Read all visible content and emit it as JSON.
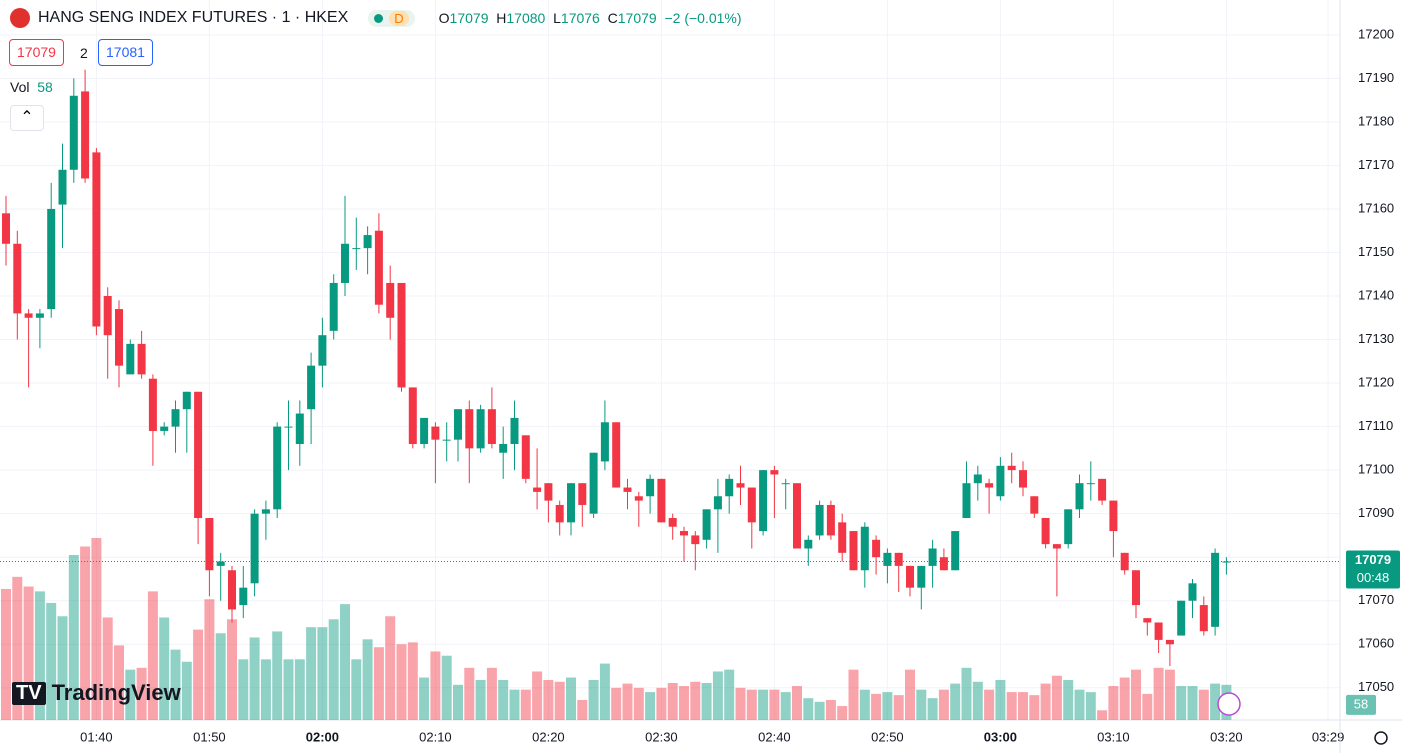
{
  "header": {
    "title": "HANG SENG INDEX FUTURES · 1 · HKEX",
    "status": "D",
    "ohlc_labels": [
      "O",
      "H",
      "L",
      "C"
    ],
    "change": "−2 (−0.01%)"
  },
  "trade": {
    "bid": "17079",
    "spread": "2",
    "ask": "17081"
  },
  "volume_label": "Vol",
  "brand": "TradingView",
  "countdown": "00:48",
  "chart_data": {
    "type": "candlestick",
    "x": [
      "01:32",
      "01:33",
      "01:34",
      "01:35",
      "01:36",
      "01:37",
      "01:38",
      "01:39",
      "01:40",
      "01:41",
      "01:42",
      "01:43",
      "01:44",
      "01:45",
      "01:46",
      "01:47",
      "01:48",
      "01:49",
      "01:50",
      "01:51",
      "01:52",
      "01:53",
      "01:54",
      "01:55",
      "01:56",
      "01:57",
      "01:58",
      "01:59",
      "02:00",
      "02:01",
      "02:02",
      "02:03",
      "02:04",
      "02:05",
      "02:06",
      "02:07",
      "02:08",
      "02:09",
      "02:10",
      "02:11",
      "02:12",
      "02:13",
      "02:14",
      "02:15",
      "02:16",
      "02:17",
      "02:18",
      "02:19",
      "02:20",
      "02:21",
      "02:22",
      "02:23",
      "02:24",
      "02:25",
      "02:26",
      "02:27",
      "02:28",
      "02:29",
      "02:30",
      "02:31",
      "02:32",
      "02:33",
      "02:34",
      "02:35",
      "02:36",
      "02:37",
      "02:38",
      "02:39",
      "02:40",
      "02:41",
      "02:42",
      "02:43",
      "02:44",
      "02:45",
      "02:46",
      "02:47",
      "02:48",
      "02:49",
      "02:50",
      "02:51",
      "02:52",
      "02:53",
      "02:54",
      "02:55",
      "02:56",
      "02:57",
      "02:58",
      "02:59",
      "03:00",
      "03:01",
      "03:02",
      "03:03",
      "03:04",
      "03:05",
      "03:06",
      "03:07",
      "03:08",
      "03:09",
      "03:10",
      "03:11",
      "03:12",
      "03:13",
      "03:14",
      "03:15",
      "03:16",
      "03:17",
      "03:18",
      "03:19",
      "03:20"
    ],
    "open": [
      17159,
      17152,
      17136,
      17135,
      17137,
      17161,
      17169,
      17187,
      17173,
      17140,
      17137,
      17122,
      17129,
      17121,
      17109,
      17110,
      17114,
      17118,
      17089,
      17078,
      17077,
      17069,
      17074,
      17090,
      17091,
      17110,
      17106,
      17114,
      17124,
      17132,
      17143,
      17151,
      17151,
      17155,
      17143,
      17143,
      17119,
      17106,
      17110,
      17107,
      17107,
      17114,
      17105,
      17114,
      17104,
      17106,
      17108,
      17096,
      17097,
      17092,
      17088,
      17097,
      17090,
      17102,
      17111,
      17096,
      17094,
      17094,
      17098,
      17089,
      17086,
      17085,
      17084,
      17091,
      17094,
      17097,
      17096,
      17086,
      17100,
      17097,
      17097,
      17082,
      17085,
      17092,
      17088,
      17086,
      17077,
      17084,
      17078,
      17081,
      17078,
      17073,
      17078,
      17080,
      17077,
      17089,
      17097,
      17097,
      17094,
      17101,
      17100,
      17094,
      17089,
      17083,
      17083,
      17091,
      17097,
      17098,
      17093,
      17081,
      17077,
      17066,
      17065,
      17061,
      17062,
      17070,
      17069,
      17064,
      17079
    ],
    "high": [
      17163,
      17155,
      17137,
      17137,
      17166,
      17175,
      17190,
      17192,
      17174,
      17142,
      17139,
      17130,
      17132,
      17122,
      17111,
      17116,
      17118,
      17118,
      17089,
      17081,
      17078,
      17078,
      17091,
      17093,
      17111,
      17116,
      17116,
      17127,
      17135,
      17145,
      17163,
      17158,
      17156,
      17159,
      17147,
      17143,
      17119,
      17112,
      17111,
      17111,
      17114,
      17116,
      17115,
      17119,
      17110,
      17116,
      17108,
      17105,
      17097,
      17093,
      17097,
      17097,
      17104,
      17116,
      17111,
      17098,
      17095,
      17099,
      17098,
      17090,
      17087,
      17086,
      17091,
      17098,
      17099,
      17101,
      17096,
      17100,
      17101,
      17098,
      17097,
      17085,
      17093,
      17093,
      17090,
      17086,
      17088,
      17085,
      17082,
      17081,
      17078,
      17078,
      17084,
      17082,
      17086,
      17102,
      17101,
      17098,
      17103,
      17104,
      17102,
      17094,
      17089,
      17083,
      17091,
      17099,
      17102,
      17098,
      17093,
      17081,
      17077,
      17066,
      17065,
      17061,
      17070,
      17075,
      17071,
      17082,
      17080
    ],
    "low": [
      17147,
      17130,
      17119,
      17128,
      17135,
      17151,
      17166,
      17166,
      17131,
      17121,
      17119,
      17122,
      17121,
      17101,
      17108,
      17104,
      17104,
      17083,
      17071,
      17070,
      17065,
      17066,
      17071,
      17084,
      17089,
      17100,
      17101,
      17106,
      17119,
      17130,
      17140,
      17146,
      17145,
      17136,
      17130,
      17118,
      17105,
      17105,
      17097,
      17102,
      17102,
      17097,
      17104,
      17105,
      17098,
      17100,
      17097,
      17091,
      17088,
      17085,
      17085,
      17087,
      17089,
      17100,
      17096,
      17091,
      17087,
      17090,
      17088,
      17084,
      17079,
      17077,
      17082,
      17081,
      17090,
      17092,
      17082,
      17085,
      17089,
      17091,
      17082,
      17078,
      17084,
      17084,
      17079,
      17077,
      17073,
      17076,
      17074,
      17072,
      17071,
      17068,
      17073,
      17077,
      17077,
      17089,
      17093,
      17090,
      17093,
      17097,
      17094,
      17089,
      17082,
      17071,
      17082,
      17089,
      17093,
      17092,
      17080,
      17076,
      17066,
      17062,
      17058,
      17055,
      17062,
      17066,
      17062,
      17062,
      17076
    ],
    "close": [
      17152,
      17136,
      17135,
      17136,
      17160,
      17169,
      17186,
      17167,
      17133,
      17131,
      17124,
      17129,
      17122,
      17109,
      17110,
      17114,
      17118,
      17089,
      17077,
      17079,
      17068,
      17073,
      17090,
      17091,
      17110,
      17110,
      17113,
      17124,
      17131,
      17143,
      17152,
      17151,
      17154,
      17138,
      17135,
      17119,
      17106,
      17112,
      17107,
      17107,
      17114,
      17105,
      17114,
      17106,
      17106,
      17112,
      17098,
      17095,
      17093,
      17088,
      17097,
      17092,
      17104,
      17111,
      17096,
      17095,
      17093,
      17098,
      17088,
      17087,
      17085,
      17083,
      17091,
      17094,
      17098,
      17096,
      17088,
      17100,
      17099,
      17097,
      17082,
      17084,
      17092,
      17085,
      17081,
      17077,
      17087,
      17080,
      17081,
      17078,
      17073,
      17078,
      17082,
      17077,
      17086,
      17097,
      17099,
      17096,
      17101,
      17100,
      17096,
      17090,
      17083,
      17082,
      17091,
      17097,
      17097,
      17093,
      17086,
      17077,
      17069,
      17065,
      17061,
      17060,
      17070,
      17074,
      17063,
      17081,
      17079
    ],
    "volume": [
      216,
      236,
      220,
      212,
      193,
      171,
      272,
      286,
      300,
      169,
      123,
      83,
      86,
      212,
      169,
      116,
      96,
      149,
      199,
      143,
      166,
      100,
      136,
      100,
      146,
      100,
      100,
      153,
      153,
      166,
      191,
      100,
      133,
      120,
      171,
      125,
      128,
      70,
      113,
      106,
      58,
      86,
      66,
      86,
      66,
      50,
      50,
      80,
      66,
      63,
      70,
      33,
      66,
      93,
      53,
      60,
      53,
      46,
      53,
      61,
      56,
      63,
      61,
      80,
      83,
      53,
      50,
      50,
      50,
      46,
      56,
      36,
      30,
      33,
      23,
      83,
      50,
      43,
      46,
      41,
      83,
      50,
      36,
      50,
      60,
      86,
      63,
      50,
      66,
      46,
      46,
      41,
      60,
      73,
      66,
      50,
      46,
      16,
      56,
      70,
      83,
      43,
      86,
      83,
      56,
      56,
      50,
      60,
      58
    ],
    "up_color": "#089981",
    "down_color": "#f23645",
    "ylim": [
      17042.6,
      17208
    ],
    "yticks": [
      17050,
      17060,
      17070,
      17080,
      17090,
      17100,
      17110,
      17120,
      17130,
      17140,
      17150,
      17160,
      17170,
      17180,
      17190,
      17200
    ],
    "xticks": [
      "01:40",
      "01:50",
      "02:00",
      "02:10",
      "02:20",
      "02:30",
      "02:40",
      "02:50",
      "03:00",
      "03:10",
      "03:20",
      "03:29"
    ],
    "grid": true
  }
}
